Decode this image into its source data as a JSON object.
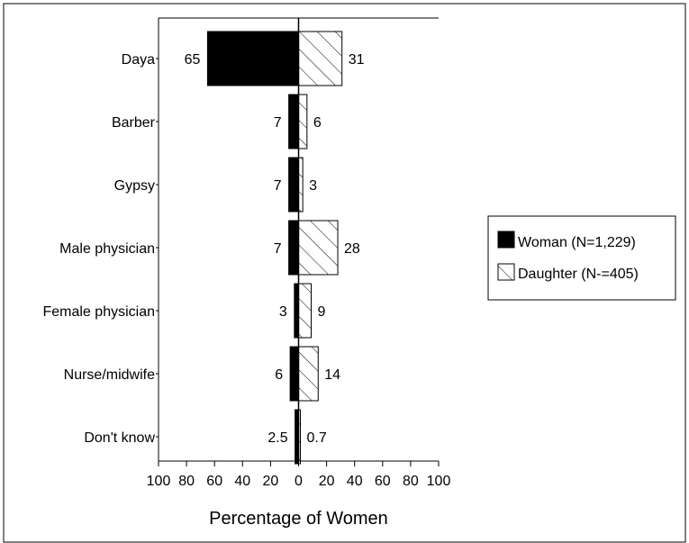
{
  "chart_data": {
    "type": "bar",
    "orientation": "horizontal-butterfly",
    "categories": [
      "Daya",
      "Barber",
      "Gypsy",
      "Male physician",
      "Female physician",
      "Nurse/midwife",
      "Don't know"
    ],
    "series": [
      {
        "name": "Woman (N=1,229)",
        "values": [
          65,
          7,
          7,
          7,
          3,
          6,
          2.5
        ],
        "value_labels": [
          "65",
          "7",
          "7",
          "7",
          "3",
          "6",
          "2.5"
        ],
        "fill": "solid",
        "color": "#000000",
        "side": "left"
      },
      {
        "name": "Daughter (N-=405)",
        "values": [
          31,
          6,
          3,
          28,
          9,
          14,
          0.7
        ],
        "value_labels": [
          "31",
          "6",
          "3",
          "28",
          "9",
          "14",
          "0.7"
        ],
        "fill": "hatched",
        "color": "#000000",
        "side": "right"
      }
    ],
    "xlabel": "Percentage of Women",
    "ylabel": "",
    "xlim": [
      -100,
      100
    ],
    "xticks": [
      "100",
      "80",
      "60",
      "40",
      "20",
      "0",
      "20",
      "40",
      "60",
      "80",
      "100"
    ],
    "grid": false,
    "legend_position": "right"
  }
}
